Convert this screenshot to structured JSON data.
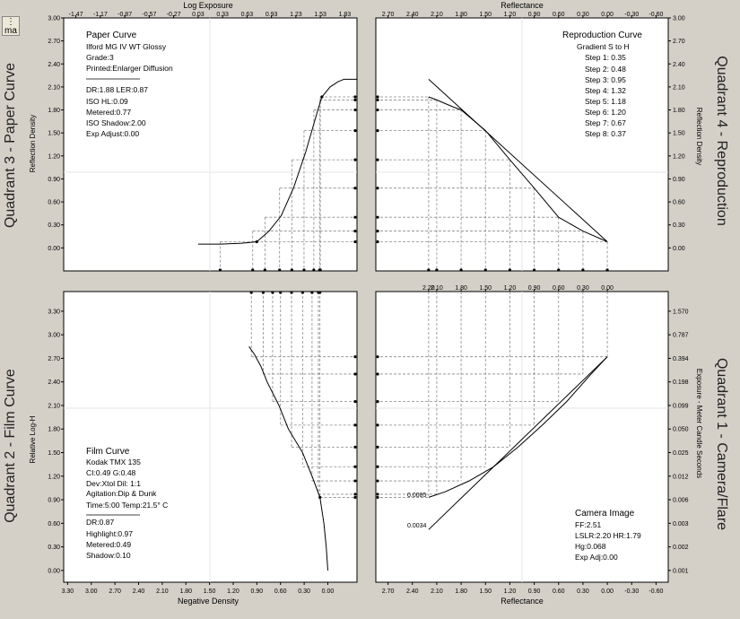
{
  "window": {
    "tab_label": "ma"
  },
  "quadrant_titles": {
    "q3": "Quadrant 3 - Paper Curve",
    "q4": "Quadrant 4 - Reproduction",
    "q2": "Quadrant 2 - Film Curve",
    "q1": "Quadrant 1 - Camera/Flare"
  },
  "axis_titles": {
    "log_exposure": "Log Exposure",
    "reflectance_top": "Reflectance",
    "reflection_density_left": "Reflection Density",
    "reflection_density_right": "Reflection Density",
    "relative_log_h": "Relative Log-H",
    "negative_density": "Negative Density",
    "reflectance_bottom": "Reflectance",
    "exposure_mcs": "Exposure - Meter Candle Seconds"
  },
  "paper_info": {
    "title": "Paper Curve",
    "paper": "Ilford MG IV WT  Glossy",
    "grade": "Grade:3",
    "printed": "Printed:Enlarger Diffusion",
    "dr_ler": "DR:1.88  LER:0.87",
    "iso_hl": "ISO HL:0.09",
    "metered": "Metered:0.77",
    "iso_shadow": "ISO Shadow:2.00",
    "exp_adjust": "Exp Adjust:0.00"
  },
  "reproduction_info": {
    "title": "Reproduction Curve",
    "gradient": "Gradient S to H",
    "steps": [
      "Step 1: 0.35",
      "Step 2: 0.48",
      "Step 3: 0.95",
      "Step 4: 1.32",
      "Step 5: 1.18",
      "Step 6: 1.20",
      "Step 7: 0.67",
      "Step 8: 0.37"
    ]
  },
  "film_info": {
    "title": "Film Curve",
    "film": "Kodak TMX 135",
    "ci_g": "CI:0.49  G:0.48",
    "dev_dil": "Dev:Xtol  Dil: 1:1",
    "agitation": "Agitation:Dip & Dunk",
    "time_temp": "Time:5:00   Temp:21.5° C",
    "dr": "DR:0.87",
    "highlight": "Highlight:0.97",
    "metered": "Metered:0.49",
    "shadow": "Shadow:0.10"
  },
  "camera_info": {
    "title": "Camera Image",
    "ff": "FF:2.51",
    "lslr": "LSLR:2.20  HR:1.79",
    "hg": "Hg:0.068",
    "exp_adj": "Exp Adj:0.00"
  },
  "ticks": {
    "log_exposure": [
      "-1.47",
      "-1.17",
      "-0.87",
      "-0.57",
      "-0.27",
      "0.03",
      "0.33",
      "0.63",
      "0.93",
      "1.23",
      "1.53",
      "1.83"
    ],
    "reflectance_top": [
      "2.70",
      "2.40",
      "2.10",
      "1.80",
      "1.50",
      "1.20",
      "0.90",
      "0.60",
      "0.30",
      "0.00",
      "-0.30",
      "-0.60"
    ],
    "reflection_density": [
      "3.00",
      "2.70",
      "2.40",
      "2.10",
      "1.80",
      "1.50",
      "1.20",
      "0.90",
      "0.60",
      "0.30",
      "0.00"
    ],
    "reflectance_mid": [
      "2.20",
      "2.10",
      "1.80",
      "1.50",
      "1.20",
      "0.90",
      "0.60",
      "0.30",
      "0.00"
    ],
    "relative_log_h": [
      "3.30",
      "3.00",
      "2.70",
      "2.40",
      "2.10",
      "1.80",
      "1.50",
      "1.20",
      "0.90",
      "0.60",
      "0.30",
      "0.00"
    ],
    "exposure_mcs": [
      "1.570",
      "0.787",
      "0.394",
      "0.198",
      "0.099",
      "0.050",
      "0.025",
      "0.012",
      "0.006",
      "0.003",
      "0.002",
      "0.001"
    ],
    "negative_density": [
      "3.30",
      "3.00",
      "2.70",
      "2.40",
      "2.10",
      "1.80",
      "1.50",
      "1.20",
      "0.90",
      "0.60",
      "0.30",
      "0.00"
    ],
    "reflectance_bottom": [
      "2.70",
      "2.40",
      "2.10",
      "1.80",
      "1.50",
      "1.20",
      "0.90",
      "0.60",
      "0.30",
      "0.00",
      "-0.30",
      "-0.60"
    ]
  },
  "flare_labels": {
    "upper": "0.0085",
    "lower": "0.0034"
  },
  "chart_data": [
    {
      "type": "line",
      "name": "paper-curve",
      "title": "Paper Curve",
      "xlabel": "Log Exposure",
      "ylabel": "Reflection Density",
      "xlim": [
        -1.62,
        1.98
      ],
      "ylim": [
        -0.3,
        3.0
      ],
      "x": [
        0.03,
        0.3,
        0.55,
        0.75,
        0.9,
        1.05,
        1.2,
        1.35,
        1.5,
        1.55,
        1.65,
        1.75,
        1.82,
        1.98
      ],
      "y": [
        0.05,
        0.05,
        0.06,
        0.08,
        0.22,
        0.42,
        0.78,
        1.25,
        1.8,
        1.97,
        2.1,
        2.17,
        2.2,
        2.2
      ]
    },
    {
      "type": "line",
      "name": "reproduction-curve",
      "title": "Reproduction Curve",
      "xlabel": "Reflectance",
      "ylabel": "Reflection Density",
      "xlim": [
        -0.75,
        2.85
      ],
      "ylim": [
        -0.3,
        3.0
      ],
      "series": [
        {
          "name": "reproduction",
          "x": [
            2.2,
            2.1,
            1.9,
            1.8,
            1.5,
            1.2,
            0.9,
            0.6,
            0.3,
            0.0
          ],
          "y": [
            1.97,
            1.93,
            1.84,
            1.8,
            1.53,
            1.15,
            0.78,
            0.4,
            0.22,
            0.08
          ]
        },
        {
          "name": "reference",
          "x": [
            2.2,
            0.0
          ],
          "y": [
            2.2,
            0.08
          ]
        }
      ]
    },
    {
      "type": "line",
      "name": "film-curve",
      "title": "Film Curve",
      "xlabel": "Negative Density",
      "ylabel": "Relative Log-H",
      "xlim": [
        -0.37,
        3.35
      ],
      "ylim": [
        -0.15,
        3.55
      ],
      "x": [
        0.0,
        0.02,
        0.05,
        0.1,
        0.2,
        0.32,
        0.5,
        0.62,
        0.77,
        0.85,
        0.93,
        1.0
      ],
      "y": [
        0.0,
        0.3,
        0.6,
        0.93,
        1.2,
        1.5,
        1.8,
        2.1,
        2.4,
        2.6,
        2.75,
        2.85
      ]
    },
    {
      "type": "line",
      "name": "camera-flare",
      "title": "Camera Image",
      "xlabel": "Reflectance",
      "ylabel": "Relative Log-H",
      "xlim": [
        -0.75,
        2.85
      ],
      "ylim": [
        -0.15,
        3.55
      ],
      "series": [
        {
          "name": "with-flare",
          "x": [
            2.2,
            2.0,
            1.7,
            1.4,
            1.1,
            0.8,
            0.5,
            0.2,
            0.0
          ],
          "y": [
            0.93,
            1.0,
            1.14,
            1.32,
            1.57,
            1.85,
            2.15,
            2.5,
            2.72
          ]
        },
        {
          "name": "no-flare",
          "x": [
            2.2,
            0.0
          ],
          "y": [
            0.52,
            2.72
          ]
        }
      ]
    }
  ]
}
